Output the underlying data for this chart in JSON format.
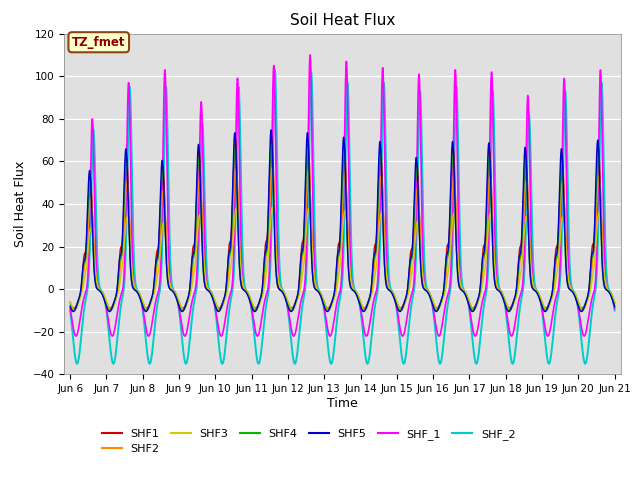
{
  "title": "Soil Heat Flux",
  "xlabel": "Time",
  "ylabel": "Soil Heat Flux",
  "xlim_start": 5.83,
  "xlim_end": 21.17,
  "ylim": [
    -40,
    120
  ],
  "yticks": [
    -40,
    -20,
    0,
    20,
    40,
    60,
    80,
    100,
    120
  ],
  "xtick_labels": [
    "Jun 6",
    "Jun 7",
    "Jun 8",
    "Jun 9",
    "Jun 10",
    "Jun 11",
    "Jun 12",
    "Jun 13",
    "Jun 14",
    "Jun 15",
    "Jun 16",
    "Jun 17",
    "Jun 18",
    "Jun 19",
    "Jun 20",
    "Jun 21"
  ],
  "xtick_positions": [
    6,
    7,
    8,
    9,
    10,
    11,
    12,
    13,
    14,
    15,
    16,
    17,
    18,
    19,
    20,
    21
  ],
  "series_order": [
    "SHF_2",
    "SHF_1",
    "SHF1",
    "SHF2",
    "SHF3",
    "SHF4",
    "SHF5"
  ],
  "series": {
    "SHF1": {
      "color": "#cc0000",
      "lw": 1.0
    },
    "SHF2": {
      "color": "#ff8800",
      "lw": 1.0
    },
    "SHF3": {
      "color": "#cccc00",
      "lw": 1.0
    },
    "SHF4": {
      "color": "#00bb00",
      "lw": 1.0
    },
    "SHF5": {
      "color": "#0000cc",
      "lw": 1.0
    },
    "SHF_1": {
      "color": "#ff00ff",
      "lw": 1.2
    },
    "SHF_2": {
      "color": "#00cccc",
      "lw": 1.4
    }
  },
  "annotation_text": "TZ_fmet",
  "bg_color": "#e0e0e0",
  "legend_ncol": 6,
  "legend_order": [
    "SHF1",
    "SHF2",
    "SHF3",
    "SHF4",
    "SHF5",
    "SHF_1",
    "SHF_2"
  ]
}
